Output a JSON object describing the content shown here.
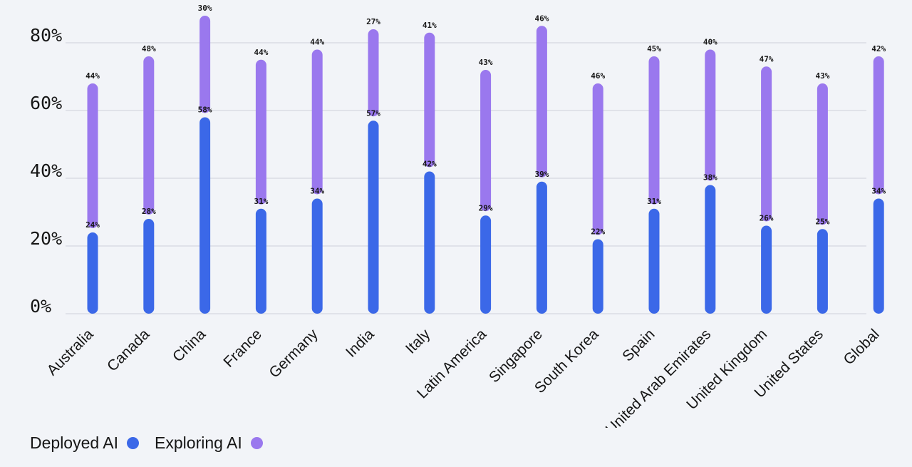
{
  "chart_data": {
    "type": "bar",
    "title": "",
    "xlabel": "",
    "ylabel": "",
    "ylim": [
      0,
      85
    ],
    "yticks": [
      "0%",
      "20%",
      "40%",
      "60%",
      "80%"
    ],
    "grid": true,
    "legend_position": "bottom-left",
    "categories": [
      "Australia",
      "Canada",
      "China",
      "France",
      "Germany",
      "India",
      "Italy",
      "Latin America",
      "Singapore",
      "South Korea",
      "Spain",
      "United Arab Emirates",
      "United Kingdom",
      "United States",
      "Global"
    ],
    "series": [
      {
        "name": "Deployed AI",
        "color": "#3b68e8",
        "values": [
          24,
          28,
          58,
          31,
          34,
          57,
          42,
          29,
          39,
          22,
          31,
          38,
          26,
          25,
          34
        ],
        "labels": [
          "24%",
          "28%",
          "58%",
          "31%",
          "34%",
          "57%",
          "42%",
          "29%",
          "39%",
          "22%",
          "31%",
          "38%",
          "26%",
          "25%",
          "34%"
        ]
      },
      {
        "name": "Exploring AI",
        "color": "#9a78ee",
        "values": [
          44,
          48,
          30,
          44,
          44,
          27,
          41,
          43,
          46,
          46,
          45,
          40,
          47,
          43,
          42
        ],
        "labels": [
          "44%",
          "48%",
          "30%",
          "44%",
          "44%",
          "27%",
          "41%",
          "43%",
          "46%",
          "46%",
          "45%",
          "40%",
          "47%",
          "43%",
          "42%"
        ]
      }
    ]
  },
  "legend": {
    "deployed_label": "Deployed AI",
    "exploring_label": "Exploring AI",
    "deployed_color": "#3b68e8",
    "exploring_color": "#9a78ee"
  }
}
